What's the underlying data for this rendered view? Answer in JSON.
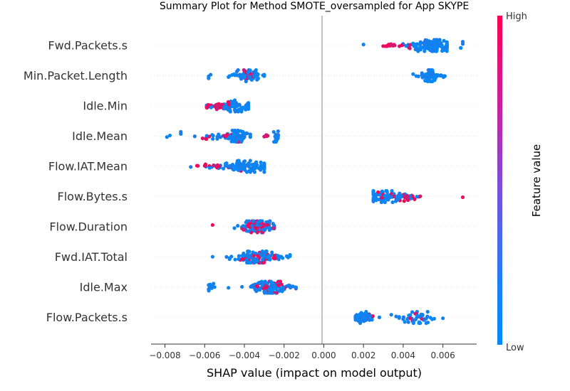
{
  "chart_data": {
    "type": "scatter",
    "title": "Summary Plot for Method SMOTE_oversampled for App SKYPE",
    "xlabel": "SHAP value (impact on model output)",
    "ylabel": "",
    "xlim": [
      -0.0087,
      0.0077
    ],
    "xticks": [
      {
        "value": -0.008,
        "label": "−0.008"
      },
      {
        "value": -0.006,
        "label": "−0.006"
      },
      {
        "value": -0.004,
        "label": "−0.004"
      },
      {
        "value": -0.002,
        "label": "−0.002"
      },
      {
        "value": 0.0,
        "label": "0.000"
      },
      {
        "value": 0.002,
        "label": "0.002"
      },
      {
        "value": 0.004,
        "label": "0.004"
      },
      {
        "value": 0.006,
        "label": "0.006"
      }
    ],
    "grid": false,
    "colorbar": {
      "high_label": "High",
      "low_label": "Low",
      "title": "Feature value",
      "high_color": "#ff0052",
      "low_color": "#008bfb"
    },
    "features": [
      {
        "name": "Fwd.Packets.s",
        "clusters": [
          {
            "min": 0.002,
            "max": 0.0062,
            "center": 0.0054,
            "spread": 0.0007,
            "n": 150,
            "high_frac": 0.15,
            "high_center": 0.0035
          },
          {
            "min": 0.0069,
            "max": 0.007,
            "center": 0.00695,
            "spread": 5e-05,
            "n": 4,
            "high_frac": 0.0,
            "high_center": 0.0
          }
        ]
      },
      {
        "name": "Min.Packet.Length",
        "clusters": [
          {
            "min": -0.0058,
            "max": -0.0057,
            "center": -0.00575,
            "spread": 5e-05,
            "n": 3,
            "high_frac": 0.0,
            "high_center": 0.0
          },
          {
            "min": -0.0048,
            "max": -0.003,
            "center": -0.0038,
            "spread": 0.0004,
            "n": 70,
            "high_frac": 0.25,
            "high_center": -0.0037
          },
          {
            "min": 0.0045,
            "max": 0.0061,
            "center": 0.0053,
            "spread": 0.00025,
            "n": 70,
            "high_frac": 0.0,
            "high_center": 0.0
          }
        ]
      },
      {
        "name": "Idle.Min",
        "clusters": [
          {
            "min": -0.0059,
            "max": -0.0038,
            "center": -0.0045,
            "spread": 0.0005,
            "n": 110,
            "high_frac": 0.35,
            "high_center": -0.0054
          }
        ]
      },
      {
        "name": "Idle.Mean",
        "clusters": [
          {
            "min": -0.0079,
            "max": -0.0072,
            "center": -0.0075,
            "spread": 0.0003,
            "n": 5,
            "high_frac": 0.0,
            "high_center": 0.0
          },
          {
            "min": -0.0065,
            "max": -0.0053,
            "center": -0.0058,
            "spread": 0.0003,
            "n": 15,
            "high_frac": 0.4,
            "high_center": -0.0058
          },
          {
            "min": -0.0052,
            "max": -0.0037,
            "center": -0.0043,
            "spread": 0.0003,
            "n": 90,
            "high_frac": 0.2,
            "high_center": -0.0046
          },
          {
            "min": -0.003,
            "max": -0.0023,
            "center": -0.0024,
            "spread": 0.00015,
            "n": 20,
            "high_frac": 0.2,
            "high_center": -0.0028
          }
        ]
      },
      {
        "name": "Flow.IAT.Mean",
        "clusters": [
          {
            "min": -0.0067,
            "max": -0.003,
            "center": -0.0039,
            "spread": 0.0008,
            "n": 130,
            "high_frac": 0.15,
            "high_center": -0.0055
          }
        ]
      },
      {
        "name": "Flow.Bytes.s",
        "clusters": [
          {
            "min": 0.0025,
            "max": 0.007,
            "center": 0.003,
            "spread": 0.0008,
            "n": 120,
            "high_frac": 0.25,
            "high_center": 0.0038
          }
        ]
      },
      {
        "name": "Flow.Duration",
        "clusters": [
          {
            "min": -0.0056,
            "max": -0.0025,
            "center": -0.0033,
            "spread": 0.0006,
            "n": 120,
            "high_frac": 0.3,
            "high_center": -0.0033
          }
        ]
      },
      {
        "name": "Fwd.IAT.Total",
        "clusters": [
          {
            "min": -0.0056,
            "max": -0.0017,
            "center": -0.0033,
            "spread": 0.0008,
            "n": 130,
            "high_frac": 0.3,
            "high_center": -0.0033
          }
        ]
      },
      {
        "name": "Idle.Max",
        "clusters": [
          {
            "min": -0.0058,
            "max": -0.0055,
            "center": -0.0057,
            "spread": 0.0001,
            "n": 12,
            "high_frac": 0.0,
            "high_center": 0.0
          },
          {
            "min": -0.0048,
            "max": -0.0014,
            "center": -0.0027,
            "spread": 0.0006,
            "n": 120,
            "high_frac": 0.25,
            "high_center": -0.0028
          }
        ]
      },
      {
        "name": "Flow.Packets.s",
        "clusters": [
          {
            "min": 0.0016,
            "max": 0.0028,
            "center": 0.002,
            "spread": 0.00025,
            "n": 70,
            "high_frac": 0.05,
            "high_center": 0.002
          },
          {
            "min": 0.0034,
            "max": 0.006,
            "center": 0.0047,
            "spread": 0.0006,
            "n": 50,
            "high_frac": 0.2,
            "high_center": 0.0048
          }
        ]
      }
    ]
  }
}
